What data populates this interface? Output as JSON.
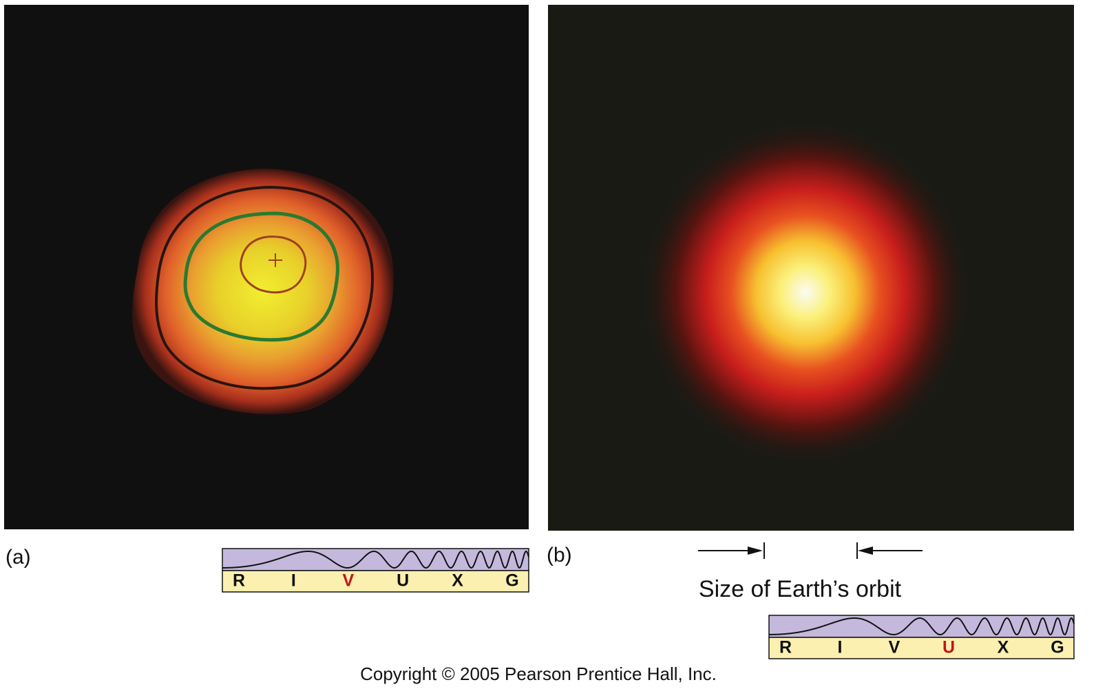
{
  "panels": [
    {
      "label": "(a)",
      "spectrum": {
        "bands": [
          "R",
          "I",
          "V",
          "U",
          "X",
          "G"
        ],
        "highlight": "V"
      }
    },
    {
      "label": "(b)",
      "annotation": "Size of Earth’s orbit",
      "spectrum": {
        "bands": [
          "R",
          "I",
          "V",
          "U",
          "X",
          "G"
        ],
        "highlight": "U"
      }
    }
  ],
  "footer": "Copyright © 2005 Pearson Prentice Hall, Inc."
}
